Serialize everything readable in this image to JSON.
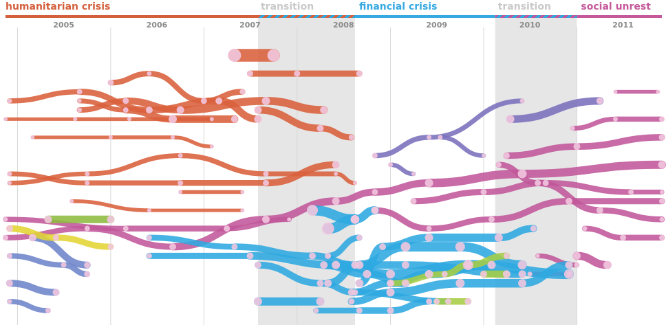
{
  "chart_data": {
    "type": "stream-timeline",
    "title": "",
    "xlabel": "",
    "ylabel": "",
    "x_range": [
      "2004-11-15",
      "2011-11-30"
    ],
    "years": [
      "2005",
      "2006",
      "2007",
      "2008",
      "2009",
      "2010",
      "2011"
    ],
    "phases": [
      {
        "label": "humanitarian crisis",
        "start": "2004-11-15",
        "end": "2007-08-01",
        "color": "#d45f3c",
        "kind": "phase"
      },
      {
        "label": "transition",
        "start": "2007-08-01",
        "end": "2008-08-15",
        "color": "#cccccc",
        "kind": "transition"
      },
      {
        "label": "financial crisis",
        "start": "2008-08-15",
        "end": "2010-02-15",
        "color": "#36a9e1",
        "kind": "phase"
      },
      {
        "label": "transition",
        "start": "2010-02-15",
        "end": "2011-01-01",
        "color": "#cccccc",
        "kind": "transition"
      },
      {
        "label": "social unrest",
        "start": "2011-01-01",
        "end": "2011-11-30",
        "color": "#c4589a",
        "kind": "phase"
      }
    ],
    "shaded_periods": [
      {
        "start": "2007-08-01",
        "end": "2008-08-15"
      },
      {
        "start": "2010-02-15",
        "end": "2011-01-01"
      }
    ],
    "topic_colors": {
      "humanitarian": "#d9603b",
      "social": "#c0579a",
      "financial": "#2ea9e0",
      "purple": "#7a6fbd",
      "blue": "#6d84c9",
      "yellow": "#e2d433",
      "green": "#8dbb3e",
      "lime": "#a6cd44",
      "node": "#f2c6df"
    },
    "streams": [
      {
        "group": "humanitarian",
        "path": [
          [
            "2004-11-15",
            21,
            5
          ],
          [
            "2005-08-15",
            21,
            5
          ],
          [
            "2006-03-15",
            21,
            6
          ],
          [
            "2007-02-01",
            21,
            5
          ]
        ]
      },
      {
        "group": "humanitarian",
        "path": [
          [
            "2004-12-01",
            23,
            7
          ],
          [
            "2005-09-01",
            24,
            8
          ],
          [
            "2006-06-01",
            22,
            10
          ],
          [
            "2007-03-01",
            23,
            10
          ],
          [
            "2007-08-01",
            21,
            11
          ]
        ]
      },
      {
        "group": "humanitarian",
        "path": [
          [
            "2005-09-01",
            22,
            7
          ],
          [
            "2006-03-01",
            23,
            9
          ],
          [
            "2006-10-01",
            22,
            11
          ],
          [
            "2007-09-01",
            23,
            12
          ],
          [
            "2008-04-15",
            22,
            11
          ]
        ]
      },
      {
        "group": "humanitarian",
        "path": [
          [
            "2005-09-01",
            23,
            6
          ],
          [
            "2006-03-01",
            22,
            8
          ],
          [
            "2006-09-01",
            21,
            12
          ],
          [
            "2007-05-01",
            21,
            10
          ]
        ]
      },
      {
        "group": "humanitarian",
        "path": [
          [
            "2006-01-01",
            25,
            9
          ],
          [
            "2006-06-01",
            26,
            7
          ],
          [
            "2007-01-01",
            23,
            9
          ],
          [
            "2007-06-01",
            24,
            8
          ]
        ]
      },
      {
        "group": "humanitarian",
        "path": [
          [
            "2007-05-01",
            28,
            19
          ],
          [
            "2007-10-01",
            28,
            18
          ]
        ]
      },
      {
        "group": "humanitarian",
        "path": [
          [
            "2007-07-01",
            26,
            9
          ],
          [
            "2008-01-01",
            26,
            9
          ],
          [
            "2008-09-01",
            26,
            9
          ]
        ]
      },
      {
        "group": "humanitarian",
        "path": [
          [
            "2007-08-01",
            22,
            11
          ],
          [
            "2008-04-01",
            20,
            10
          ],
          [
            "2008-08-01",
            19,
            8
          ]
        ]
      },
      {
        "group": "humanitarian",
        "path": [
          [
            "2004-12-01",
            14,
            6
          ],
          [
            "2005-10-01",
            15,
            7
          ],
          [
            "2006-10-01",
            17,
            7
          ],
          [
            "2007-09-01",
            15,
            8
          ],
          [
            "2008-06-01",
            15,
            6
          ],
          [
            "2008-08-15",
            14,
            6
          ]
        ]
      },
      {
        "group": "humanitarian",
        "path": [
          [
            "2004-12-01",
            15,
            7
          ],
          [
            "2005-10-01",
            14,
            7
          ],
          [
            "2006-10-01",
            14,
            8
          ],
          [
            "2007-09-01",
            14,
            9
          ],
          [
            "2008-06-01",
            16,
            11
          ]
        ]
      },
      {
        "group": "humanitarian",
        "path": [
          [
            "2006-10-01",
            13,
            6
          ],
          [
            "2007-06-01",
            13,
            5
          ]
        ]
      },
      {
        "group": "humanitarian",
        "path": [
          [
            "2005-08-01",
            12,
            6
          ],
          [
            "2006-06-01",
            11,
            5
          ],
          [
            "2007-06-01",
            11,
            5
          ]
        ]
      },
      {
        "group": "humanitarian",
        "path": [
          [
            "2005-03-01",
            19,
            5
          ],
          [
            "2006-01-01",
            19,
            5
          ],
          [
            "2006-09-01",
            19,
            6
          ],
          [
            "2007-02-01",
            18,
            5
          ]
        ]
      },
      {
        "group": "social",
        "path": [
          [
            "2004-11-15",
            8,
            8
          ],
          [
            "2005-10-01",
            9,
            8
          ],
          [
            "2006-09-01",
            7,
            10
          ],
          [
            "2007-09-01",
            10,
            11
          ],
          [
            "2008-06-01",
            12,
            11
          ],
          [
            "2008-11-01",
            13,
            9
          ],
          [
            "2009-06-01",
            14,
            12
          ],
          [
            "2010-06-01",
            15,
            13
          ],
          [
            "2011-11-30",
            16,
            11
          ]
        ]
      },
      {
        "group": "social",
        "path": [
          [
            "2004-11-15",
            10,
            7
          ],
          [
            "2006-03-01",
            9,
            8
          ],
          [
            "2007-04-01",
            9,
            9
          ],
          [
            "2007-12-01",
            10,
            6
          ]
        ]
      },
      {
        "group": "social",
        "path": [
          [
            "2009-04-01",
            12,
            9
          ],
          [
            "2010-01-01",
            13,
            9
          ],
          [
            "2010-09-01",
            14,
            9
          ],
          [
            "2011-08-01",
            13,
            8
          ],
          [
            "2011-11-30",
            13,
            6
          ]
        ]
      },
      {
        "group": "social",
        "path": [
          [
            "2008-11-01",
            11,
            10
          ],
          [
            "2009-06-01",
            9,
            8
          ],
          [
            "2010-02-01",
            10,
            9
          ],
          [
            "2010-12-01",
            12,
            10
          ],
          [
            "2011-11-30",
            12,
            8
          ]
        ]
      },
      {
        "group": "social",
        "path": [
          [
            "2010-03-01",
            16,
            8
          ],
          [
            "2010-08-01",
            14,
            9
          ],
          [
            "2011-04-01",
            11,
            10
          ],
          [
            "2011-11-30",
            10,
            7
          ]
        ]
      },
      {
        "group": "social",
        "path": [
          [
            "2010-04-01",
            17,
            9
          ],
          [
            "2011-01-01",
            18,
            10
          ],
          [
            "2011-11-30",
            19,
            9
          ]
        ]
      },
      {
        "group": "social",
        "path": [
          [
            "2010-12-15",
            20,
            7
          ],
          [
            "2011-06-01",
            21,
            7
          ],
          [
            "2011-11-30",
            21,
            8
          ]
        ]
      },
      {
        "group": "social",
        "path": [
          [
            "2011-02-01",
            9,
            7
          ],
          [
            "2011-07-01",
            8,
            9
          ],
          [
            "2011-11-30",
            8,
            8
          ]
        ]
      },
      {
        "group": "social",
        "path": [
          [
            "2011-06-01",
            24,
            5
          ],
          [
            "2011-11-15",
            24,
            6
          ]
        ]
      },
      {
        "group": "social",
        "path": [
          [
            "2010-07-01",
            4,
            7
          ],
          [
            "2010-12-01",
            4,
            6
          ]
        ]
      },
      {
        "group": "social",
        "path": [
          [
            "2010-08-01",
            6,
            6
          ],
          [
            "2011-01-01",
            5,
            8
          ]
        ]
      },
      {
        "group": "social",
        "path": [
          [
            "2011-01-01",
            6,
            11
          ],
          [
            "2011-05-01",
            5,
            12
          ]
        ]
      },
      {
        "group": "purple",
        "path": [
          [
            "2008-11-01",
            17,
            8
          ],
          [
            "2009-06-01",
            19,
            7
          ],
          [
            "2010-06-01",
            23,
            7
          ]
        ]
      },
      {
        "group": "purple",
        "path": [
          [
            "2009-01-01",
            16,
            7
          ],
          [
            "2009-04-01",
            15,
            6
          ]
        ]
      },
      {
        "group": "purple",
        "path": [
          [
            "2009-07-15",
            19,
            7
          ],
          [
            "2010-01-01",
            17,
            6
          ]
        ]
      },
      {
        "group": "purple",
        "path": [
          [
            "2010-04-15",
            21,
            12
          ],
          [
            "2011-04-01",
            23,
            10
          ]
        ]
      },
      {
        "group": "financial",
        "path": [
          [
            "2007-08-01",
            5,
            10
          ],
          [
            "2008-04-01",
            3,
            10
          ],
          [
            "2008-08-15",
            2,
            9
          ],
          [
            "2009-08-15",
            1,
            9
          ]
        ]
      },
      {
        "group": "financial",
        "path": [
          [
            "2008-05-01",
            9,
            18
          ],
          [
            "2008-08-15",
            10,
            12
          ]
        ]
      },
      {
        "group": "financial",
        "path": [
          [
            "2008-03-01",
            11,
            16
          ],
          [
            "2008-08-15",
            10,
            13
          ],
          [
            "2008-11-01",
            11,
            11
          ]
        ]
      },
      {
        "group": "financial",
        "path": [
          [
            "2008-04-15",
            5,
            11
          ],
          [
            "2008-10-01",
            4,
            12
          ],
          [
            "2009-03-01",
            3,
            11
          ]
        ]
      },
      {
        "group": "financial",
        "path": [
          [
            "2008-08-01",
            2,
            10
          ],
          [
            "2009-01-01",
            3,
            11
          ],
          [
            "2009-06-01",
            4,
            12
          ],
          [
            "2010-02-01",
            5,
            12
          ]
        ]
      },
      {
        "group": "financial",
        "path": [
          [
            "2006-06-01",
            8,
            8
          ],
          [
            "2007-05-01",
            7,
            9
          ],
          [
            "2008-03-01",
            6,
            10
          ],
          [
            "2008-08-15",
            5,
            11
          ],
          [
            "2009-03-01",
            5,
            11
          ],
          [
            "2010-06-01",
            4,
            11
          ]
        ]
      },
      {
        "group": "financial",
        "path": [
          [
            "2006-06-01",
            6,
            8
          ],
          [
            "2007-07-01",
            6,
            10
          ],
          [
            "2008-06-01",
            5,
            12
          ],
          [
            "2009-01-01",
            4,
            13
          ],
          [
            "2009-11-01",
            5,
            15
          ],
          [
            "2010-12-01",
            4,
            14
          ]
        ]
      },
      {
        "group": "financial",
        "path": [
          [
            "2007-08-01",
            1,
            12
          ],
          [
            "2008-04-01",
            1,
            12
          ]
        ]
      },
      {
        "group": "financial",
        "path": [
          [
            "2008-03-15",
            0,
            8
          ],
          [
            "2008-09-01",
            0,
            9
          ],
          [
            "2009-01-01",
            0,
            10
          ],
          [
            "2009-06-01",
            1,
            9
          ]
        ]
      },
      {
        "group": "financial",
        "path": [
          [
            "2008-08-01",
            1,
            9
          ],
          [
            "2009-01-01",
            2,
            12
          ],
          [
            "2009-10-01",
            3,
            13
          ],
          [
            "2010-06-01",
            3,
            12
          ],
          [
            "2010-12-01",
            5,
            11
          ]
        ]
      },
      {
        "group": "financial",
        "path": [
          [
            "2008-09-01",
            3,
            12
          ],
          [
            "2008-12-01",
            7,
            10
          ],
          [
            "2009-06-01",
            8,
            12
          ],
          [
            "2010-03-01",
            8,
            12
          ],
          [
            "2010-07-15",
            9,
            9
          ]
        ]
      },
      {
        "group": "financial",
        "path": [
          [
            "2008-05-01",
            3,
            11
          ],
          [
            "2008-09-01",
            5,
            12
          ],
          [
            "2009-03-01",
            7,
            14
          ],
          [
            "2009-10-01",
            7,
            14
          ],
          [
            "2010-06-01",
            5,
            13
          ]
        ]
      },
      {
        "group": "financial",
        "path": [
          [
            "2008-05-01",
            6,
            9
          ],
          [
            "2008-09-01",
            8,
            9
          ]
        ]
      },
      {
        "group": "blue",
        "path": [
          [
            "2004-12-01",
            3,
            10
          ],
          [
            "2005-06-01",
            2,
            10
          ]
        ]
      },
      {
        "group": "blue",
        "path": [
          [
            "2004-12-01",
            1,
            7
          ],
          [
            "2005-05-01",
            0,
            8
          ]
        ]
      },
      {
        "group": "blue",
        "path": [
          [
            "2004-12-01",
            6,
            8
          ],
          [
            "2005-07-01",
            5,
            8
          ],
          [
            "2005-10-01",
            4,
            9
          ]
        ]
      },
      {
        "group": "blue",
        "path": [
          [
            "2005-03-01",
            8,
            11
          ],
          [
            "2005-10-01",
            5,
            9
          ]
        ]
      },
      {
        "group": "yellow",
        "path": [
          [
            "2004-12-01",
            9,
            10
          ],
          [
            "2005-06-01",
            8,
            9
          ],
          [
            "2006-01-01",
            7,
            9
          ]
        ]
      },
      {
        "group": "green",
        "path": [
          [
            "2005-05-01",
            10,
            11
          ],
          [
            "2006-01-01",
            10,
            11
          ]
        ]
      },
      {
        "group": "lime",
        "path": [
          [
            "2009-01-01",
            3,
            8
          ],
          [
            "2009-08-01",
            4,
            9
          ],
          [
            "2009-11-01",
            5,
            10
          ],
          [
            "2010-04-01",
            6,
            9
          ]
        ]
      },
      {
        "group": "lime",
        "path": [
          [
            "2010-01-01",
            4,
            10
          ],
          [
            "2010-04-01",
            4,
            11
          ]
        ]
      },
      {
        "group": "lime",
        "path": [
          [
            "2009-07-01",
            1,
            9
          ],
          [
            "2009-11-01",
            1,
            10
          ]
        ]
      }
    ]
  }
}
